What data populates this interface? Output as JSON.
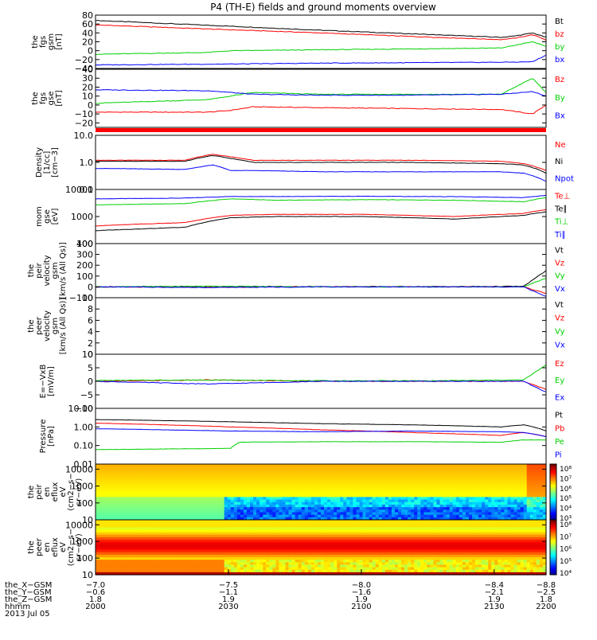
{
  "title": "P4 (TH-E) fields and ground moments overview",
  "colors": {
    "black": "#000000",
    "red": "#ff0000",
    "green": "#00d000",
    "blue": "#0000ff"
  },
  "chart_data": [
    {
      "type": "line",
      "panel_key": "fgs_gsm",
      "ylabel": [
        "the",
        "fgs",
        "gsm",
        "[nT]"
      ],
      "ylim": [
        -40,
        80
      ],
      "yticks": [
        "80",
        "60",
        "40",
        "20",
        "0",
        "−20",
        "−40"
      ],
      "legend": [
        "Bt",
        "bz",
        "by",
        "bx"
      ],
      "series": [
        {
          "name": "Bt",
          "color": "black",
          "x": [
            0,
            0.3,
            0.5,
            0.7,
            0.9,
            0.93,
            0.97,
            1
          ],
          "values": [
            68,
            55,
            46,
            38,
            30,
            33,
            40,
            30
          ]
        },
        {
          "name": "bz",
          "color": "red",
          "x": [
            0,
            0.3,
            0.5,
            0.7,
            0.9,
            0.93,
            0.97,
            1
          ],
          "values": [
            58,
            47,
            40,
            32,
            25,
            28,
            36,
            24
          ]
        },
        {
          "name": "by",
          "color": "green",
          "x": [
            0,
            0.25,
            0.3,
            0.5,
            0.7,
            0.9,
            0.97,
            1
          ],
          "values": [
            -8,
            -4,
            0,
            2,
            4,
            6,
            20,
            10
          ]
        },
        {
          "name": "bx",
          "color": "blue",
          "x": [
            0,
            0.3,
            0.5,
            0.7,
            0.9,
            0.97,
            1
          ],
          "values": [
            -32,
            -30,
            -28,
            -27,
            -26,
            -25,
            -10
          ]
        }
      ]
    },
    {
      "type": "line",
      "panel_key": "fgs_gse",
      "ylabel": [
        "the",
        "fgs",
        "gse",
        "[nT]"
      ],
      "ylim": [
        -25,
        40
      ],
      "yticks": [
        "40",
        "30",
        "20",
        "10",
        "0",
        "−10",
        "−20"
      ],
      "legend": [
        "Bz",
        "By",
        "Bx"
      ],
      "series": [
        {
          "name": "Bz",
          "color": "red",
          "x": [
            0,
            0.25,
            0.3,
            0.35,
            0.5,
            0.7,
            0.9,
            0.97,
            1
          ],
          "values": [
            -8,
            -8,
            -6,
            -2,
            -3,
            -4,
            -5,
            -10,
            0
          ]
        },
        {
          "name": "By",
          "color": "green",
          "x": [
            0,
            0.25,
            0.3,
            0.35,
            0.5,
            0.7,
            0.9,
            0.97,
            1
          ],
          "values": [
            2,
            6,
            10,
            14,
            12,
            12,
            12,
            30,
            14
          ]
        },
        {
          "name": "Bx",
          "color": "blue",
          "x": [
            0,
            0.25,
            0.3,
            0.35,
            0.5,
            0.7,
            0.9,
            0.97,
            1
          ],
          "values": [
            17,
            16,
            14,
            12,
            11,
            11,
            12,
            15,
            10
          ]
        }
      ]
    },
    {
      "type": "line",
      "panel_key": "density",
      "ylabel": [
        "Density",
        "[1/cc]",
        "[cm−3]"
      ],
      "scale": "log",
      "ylim": [
        0.1,
        10
      ],
      "yticks": [
        "10.0",
        "1.0",
        "0.1"
      ],
      "legend": [
        "Ne",
        "Ni",
        "Npot"
      ],
      "series": [
        {
          "name": "Ne",
          "color": "red",
          "x": [
            0,
            0.2,
            0.26,
            0.3,
            0.35,
            0.5,
            0.7,
            0.9,
            0.95,
            1
          ],
          "values": [
            1.2,
            1.2,
            2,
            1.6,
            1.2,
            1.2,
            1.2,
            1.1,
            0.9,
            0.5
          ]
        },
        {
          "name": "Ni",
          "color": "black",
          "x": [
            0,
            0.2,
            0.26,
            0.3,
            0.35,
            0.5,
            0.7,
            0.9,
            0.95,
            1
          ],
          "values": [
            1.1,
            1.1,
            1.8,
            1.4,
            1.0,
            1.0,
            1.0,
            0.9,
            0.8,
            0.4
          ]
        },
        {
          "name": "Npot",
          "color": "blue",
          "x": [
            0,
            0.2,
            0.26,
            0.3,
            0.35,
            0.5,
            0.7,
            0.9,
            0.95,
            1
          ],
          "values": [
            0.6,
            0.55,
            0.8,
            0.5,
            0.5,
            0.45,
            0.45,
            0.45,
            0.4,
            0.2
          ]
        }
      ]
    },
    {
      "type": "line",
      "panel_key": "temperature",
      "ylabel": [
        "mom",
        "gse",
        "[eV]"
      ],
      "scale": "log",
      "ylim": [
        100,
        10000
      ],
      "yticks": [
        "10000",
        "1000",
        "100"
      ],
      "legend": [
        "Te⊥",
        "Te∥",
        "Ti⊥",
        "Ti∥"
      ],
      "series": [
        {
          "name": "Ti∥",
          "color": "blue",
          "x": [
            0,
            0.2,
            0.3,
            0.4,
            0.6,
            0.8,
            0.95,
            1
          ],
          "values": [
            4500,
            4800,
            5500,
            5500,
            5600,
            5400,
            5000,
            6000
          ]
        },
        {
          "name": "Ti⊥",
          "color": "green",
          "x": [
            0,
            0.2,
            0.3,
            0.4,
            0.6,
            0.8,
            0.95,
            1
          ],
          "values": [
            2700,
            3000,
            4500,
            4000,
            4200,
            4000,
            3500,
            5000
          ]
        },
        {
          "name": "Te⊥",
          "color": "red",
          "x": [
            0,
            0.2,
            0.3,
            0.4,
            0.6,
            0.8,
            0.95,
            1
          ],
          "values": [
            450,
            600,
            1100,
            1200,
            1200,
            1000,
            1300,
            1800
          ]
        },
        {
          "name": "Te∥",
          "color": "black",
          "x": [
            0,
            0.2,
            0.3,
            0.4,
            0.6,
            0.8,
            0.95,
            1
          ],
          "values": [
            300,
            400,
            900,
            1000,
            1000,
            800,
            1100,
            1500
          ]
        }
      ]
    },
    {
      "type": "line",
      "panel_key": "peir_velocity",
      "ylabel": [
        "the",
        "peir",
        "velocity",
        "gsm",
        "[km/s (All Qs)]"
      ],
      "ylim": [
        -100,
        400
      ],
      "yticks": [
        "400",
        "300",
        "200",
        "100",
        "0",
        "−100"
      ],
      "legend": [
        "Vt",
        "Vz",
        "Vy",
        "Vx"
      ],
      "series": [
        {
          "name": "Vt",
          "color": "black",
          "x": [
            0,
            0.25,
            0.5,
            0.75,
            0.95,
            1
          ],
          "values": [
            0,
            5,
            2,
            2,
            5,
            150
          ]
        },
        {
          "name": "Vz",
          "color": "red",
          "x": [
            0,
            0.25,
            0.5,
            0.75,
            0.95,
            1
          ],
          "values": [
            0,
            -5,
            2,
            0,
            0,
            -60
          ]
        },
        {
          "name": "Vy",
          "color": "green",
          "x": [
            0,
            0.25,
            0.5,
            0.75,
            0.95,
            1
          ],
          "values": [
            0,
            5,
            0,
            0,
            0,
            80
          ]
        },
        {
          "name": "Vx",
          "color": "blue",
          "x": [
            0,
            0.25,
            0.5,
            0.75,
            0.95,
            1
          ],
          "values": [
            0,
            -5,
            0,
            0,
            0,
            -90
          ]
        }
      ]
    },
    {
      "type": "line",
      "panel_key": "peer_velocity",
      "ylabel": [
        "the",
        "peer",
        "velocity",
        "gsm",
        "[km/s (All Qs)]"
      ],
      "ylim": [
        0,
        10
      ],
      "yticks": [
        "10",
        "8",
        "6",
        "4",
        "2",
        "0"
      ],
      "legend": [
        "Vt",
        "Vz",
        "Vy",
        "Vx"
      ],
      "series": []
    },
    {
      "type": "line",
      "panel_key": "efield",
      "ylabel": [
        "E=−VxB",
        "[mV/m]"
      ],
      "ylim": [
        -10,
        10
      ],
      "yticks": [
        "10",
        "5",
        "0",
        "−5",
        "−10"
      ],
      "legend": [
        "Ez",
        "Ey",
        "Ex"
      ],
      "series": [
        {
          "name": "Ez",
          "color": "red",
          "x": [
            0,
            0.25,
            0.5,
            0.75,
            0.95,
            1
          ],
          "values": [
            0,
            0.5,
            0,
            0,
            0,
            -3
          ]
        },
        {
          "name": "Ey",
          "color": "green",
          "x": [
            0,
            0.25,
            0.5,
            0.75,
            0.95,
            1
          ],
          "values": [
            0.3,
            0.5,
            0.2,
            0.2,
            0.5,
            6
          ]
        },
        {
          "name": "Ex",
          "color": "blue",
          "x": [
            0,
            0.25,
            0.5,
            0.75,
            0.95,
            1
          ],
          "values": [
            0,
            -1,
            0,
            0,
            0,
            -4
          ]
        }
      ]
    },
    {
      "type": "line",
      "panel_key": "pressure",
      "ylabel": [
        "Pressure",
        "[nPa]"
      ],
      "scale": "log",
      "ylim": [
        0.01,
        10
      ],
      "yticks": [
        "10.00",
        "1.00",
        "0.10",
        "0.01"
      ],
      "legend": [
        "Pt",
        "Pb",
        "Pe",
        "Pi"
      ],
      "series": [
        {
          "name": "Pt",
          "color": "black",
          "x": [
            0,
            0.3,
            0.5,
            0.7,
            0.9,
            0.95,
            1
          ],
          "values": [
            2.5,
            1.9,
            1.5,
            1.3,
            1.0,
            1.3,
            0.6
          ]
        },
        {
          "name": "Pb",
          "color": "red",
          "x": [
            0,
            0.3,
            0.5,
            0.7,
            0.9,
            0.95,
            1
          ],
          "values": [
            1.6,
            1.0,
            0.7,
            0.5,
            0.35,
            0.5,
            0.3
          ]
        },
        {
          "name": "Pi",
          "color": "blue",
          "x": [
            0,
            0.3,
            0.5,
            0.7,
            0.9,
            0.95,
            1
          ],
          "values": [
            0.8,
            0.6,
            0.55,
            0.6,
            0.55,
            0.5,
            0.3
          ]
        },
        {
          "name": "Pe",
          "color": "green",
          "x": [
            0,
            0.3,
            0.32,
            0.5,
            0.7,
            0.9,
            0.95,
            1
          ],
          "values": [
            0.06,
            0.07,
            0.15,
            0.16,
            0.16,
            0.15,
            0.2,
            0.2
          ]
        }
      ]
    },
    {
      "type": "heatmap",
      "panel_key": "peir_spectrogram",
      "ylabel": [
        "the",
        "peir",
        "en",
        "eflux",
        "eV",
        "(cm2−s−",
        "sr−eV)"
      ],
      "scale": "log",
      "ylim": [
        10,
        20000
      ],
      "yticks": [
        "10000",
        "1000",
        "100",
        "10"
      ],
      "colorbar_ticks": [
        "10⁸",
        "10⁷",
        "10⁶",
        "10⁵",
        "10⁴",
        "10³"
      ]
    },
    {
      "type": "heatmap",
      "panel_key": "peer_spectrogram",
      "ylabel": [
        "the",
        "peer",
        "en",
        "eflux",
        "eV",
        "(cm2−s−",
        "sr−eV)"
      ],
      "scale": "log",
      "ylim": [
        10,
        20000
      ],
      "yticks": [
        "10000",
        "1000",
        "100",
        "10"
      ],
      "colorbar_ticks": [
        "10⁸",
        "10⁷",
        "10⁶",
        "10⁵",
        "10⁴"
      ]
    }
  ],
  "x_axis": {
    "rows": [
      {
        "label": "the_X−GSM",
        "values": [
          "−7.0",
          "−7.5",
          "−8.0",
          "−8.4",
          "−8.8"
        ]
      },
      {
        "label": "the_Y−GSM",
        "values": [
          "−0.6",
          "−1.1",
          "−1.6",
          "−2.1",
          "−2.5"
        ]
      },
      {
        "label": "the_Z−GSM",
        "values": [
          "1.8",
          "1.9",
          "1.9",
          "1.9",
          "1.8"
        ]
      },
      {
        "label": "hhmm",
        "values": [
          "2000",
          "2030",
          "2100",
          "2130",
          "2200"
        ]
      }
    ],
    "date": "2013 Jul 05"
  }
}
